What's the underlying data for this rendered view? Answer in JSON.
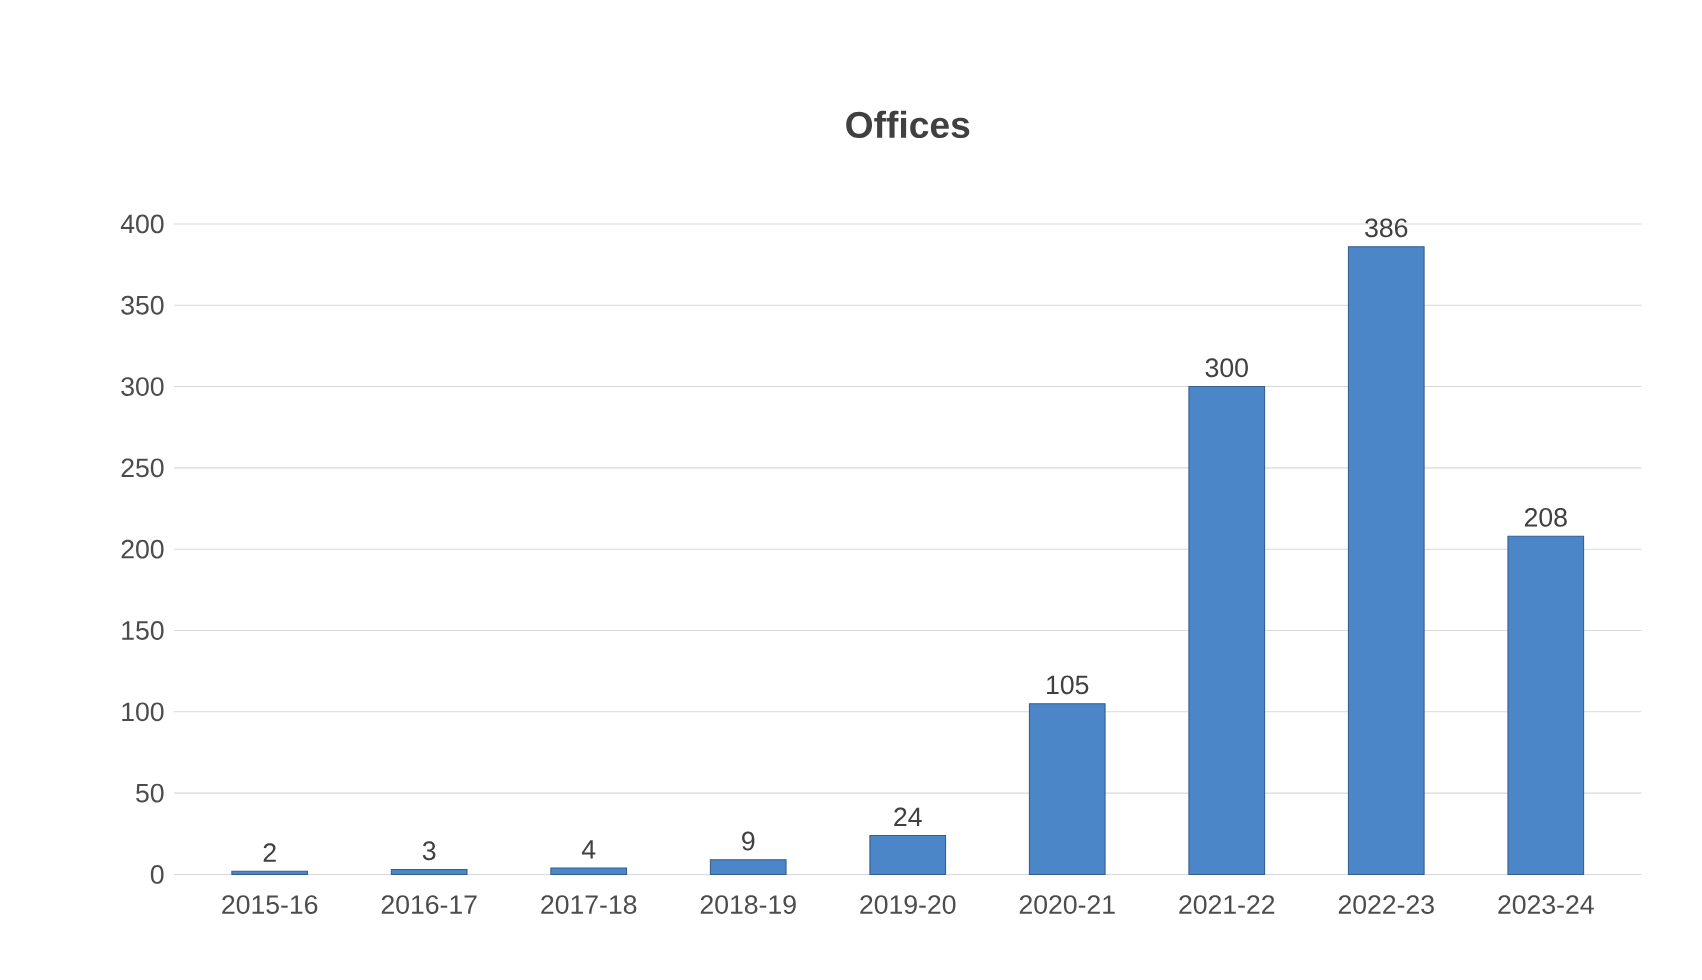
{
  "chart_data": {
    "type": "bar",
    "title": "Offices",
    "categories": [
      "2015-16",
      "2016-17",
      "2017-18",
      "2018-19",
      "2019-20",
      "2020-21",
      "2021-22",
      "2022-23",
      "2023-24"
    ],
    "values": [
      2,
      3,
      4,
      9,
      24,
      105,
      300,
      386,
      208
    ],
    "color": "#4a86c8",
    "ylim": [
      0,
      400
    ],
    "yticks": [
      0,
      50,
      100,
      150,
      200,
      250,
      300,
      350,
      400
    ],
    "grid": "y",
    "data_labels": true
  }
}
